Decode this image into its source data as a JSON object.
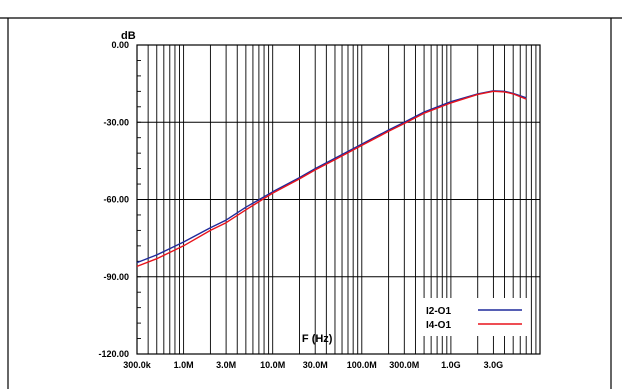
{
  "chart_data": {
    "type": "line",
    "title": "",
    "ylabel": "dB",
    "xlabel": "F (Hz)",
    "x_scale": "log",
    "xlim": [
      300000,
      10000000000
    ],
    "ylim": [
      -120,
      0
    ],
    "grid": true,
    "legend_position": "bottom-right",
    "x_ticks": [
      {
        "value": 300000,
        "label": "300.0k"
      },
      {
        "value": 1000000,
        "label": "1.0M"
      },
      {
        "value": 3000000,
        "label": "3.0M"
      },
      {
        "value": 10000000,
        "label": "10.0M"
      },
      {
        "value": 30000000,
        "label": "30.0M"
      },
      {
        "value": 100000000,
        "label": "100.0M"
      },
      {
        "value": 300000000,
        "label": "300.0M"
      },
      {
        "value": 1000000000,
        "label": "1.0G"
      },
      {
        "value": 3000000000,
        "label": "3.0G"
      }
    ],
    "y_ticks": [
      {
        "value": 0,
        "label": "0.00"
      },
      {
        "value": -30,
        "label": "-30.00"
      },
      {
        "value": -60,
        "label": "-60.00"
      },
      {
        "value": -90,
        "label": "-90.00"
      },
      {
        "value": -120,
        "label": "-120.00"
      }
    ],
    "series": [
      {
        "name": "I2-O1",
        "color": "#1f2a9c",
        "x": [
          300000,
          500000,
          1000000,
          2000000,
          3000000,
          5000000,
          10000000,
          20000000,
          30000000,
          50000000,
          100000000,
          200000000,
          300000000,
          500000000,
          1000000000,
          2000000000,
          3000000000,
          4000000000,
          5000000000,
          7000000000
        ],
        "y": [
          -84.5,
          -81.5,
          -76.5,
          -71,
          -68,
          -63,
          -57,
          -51.5,
          -48,
          -44,
          -38.5,
          -33,
          -30,
          -26,
          -22,
          -19,
          -17.8,
          -18,
          -18.8,
          -20.5
        ]
      },
      {
        "name": "I4-O1",
        "color": "#e8141c",
        "x": [
          300000,
          500000,
          1000000,
          2000000,
          3000000,
          5000000,
          10000000,
          20000000,
          30000000,
          50000000,
          100000000,
          200000000,
          300000000,
          500000000,
          1000000000,
          2000000000,
          3000000000,
          4000000000,
          5000000000,
          7000000000
        ],
        "y": [
          -86,
          -83,
          -78,
          -72,
          -69,
          -64,
          -57.5,
          -52,
          -48.5,
          -44.5,
          -39,
          -33.5,
          -30.5,
          -26.5,
          -22.5,
          -19.2,
          -18,
          -18.2,
          -19,
          -21
        ]
      }
    ]
  }
}
